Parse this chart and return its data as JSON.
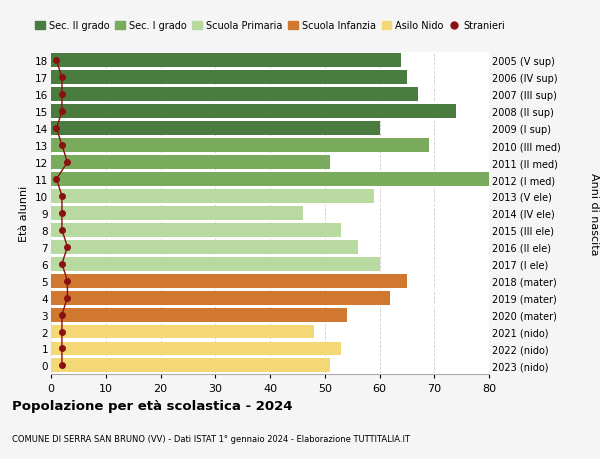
{
  "ages": [
    18,
    17,
    16,
    15,
    14,
    13,
    12,
    11,
    10,
    9,
    8,
    7,
    6,
    5,
    4,
    3,
    2,
    1,
    0
  ],
  "years": [
    "2005 (V sup)",
    "2006 (IV sup)",
    "2007 (III sup)",
    "2008 (II sup)",
    "2009 (I sup)",
    "2010 (III med)",
    "2011 (II med)",
    "2012 (I med)",
    "2013 (V ele)",
    "2014 (IV ele)",
    "2015 (III ele)",
    "2016 (II ele)",
    "2017 (I ele)",
    "2018 (mater)",
    "2019 (mater)",
    "2020 (mater)",
    "2021 (nido)",
    "2022 (nido)",
    "2023 (nido)"
  ],
  "values": [
    64,
    65,
    67,
    74,
    60,
    69,
    51,
    80,
    59,
    46,
    53,
    56,
    60,
    65,
    62,
    54,
    48,
    53,
    51
  ],
  "stranieri": [
    1,
    2,
    2,
    2,
    1,
    2,
    3,
    1,
    2,
    2,
    2,
    3,
    2,
    3,
    3,
    2,
    2,
    2,
    2
  ],
  "bar_colors": [
    "#4a7c3f",
    "#4a7c3f",
    "#4a7c3f",
    "#4a7c3f",
    "#4a7c3f",
    "#7aaa5b",
    "#7aaa5b",
    "#7aaa5b",
    "#b8d9a0",
    "#b8d9a0",
    "#b8d9a0",
    "#b8d9a0",
    "#b8d9a0",
    "#d07830",
    "#d07830",
    "#d07830",
    "#f5d876",
    "#f5d876",
    "#f5d876"
  ],
  "legend_colors": {
    "Sec. II grado": "#4a7c3f",
    "Sec. I grado": "#7aaa5b",
    "Scuola Primaria": "#b8d9a0",
    "Scuola Infanzia": "#d07830",
    "Asilo Nido": "#f5d876",
    "Stranieri": "#8b1010"
  },
  "title": "Popolazione per età scolastica - 2024",
  "subtitle": "COMUNE DI SERRA SAN BRUNO (VV) - Dati ISTAT 1° gennaio 2024 - Elaborazione TUTTITALIA.IT",
  "ylabel_left": "Età alunni",
  "ylabel_right": "Anni di nascita",
  "xlim": [
    0,
    80
  ],
  "background_color": "#f5f5f5",
  "bar_background": "#ffffff"
}
